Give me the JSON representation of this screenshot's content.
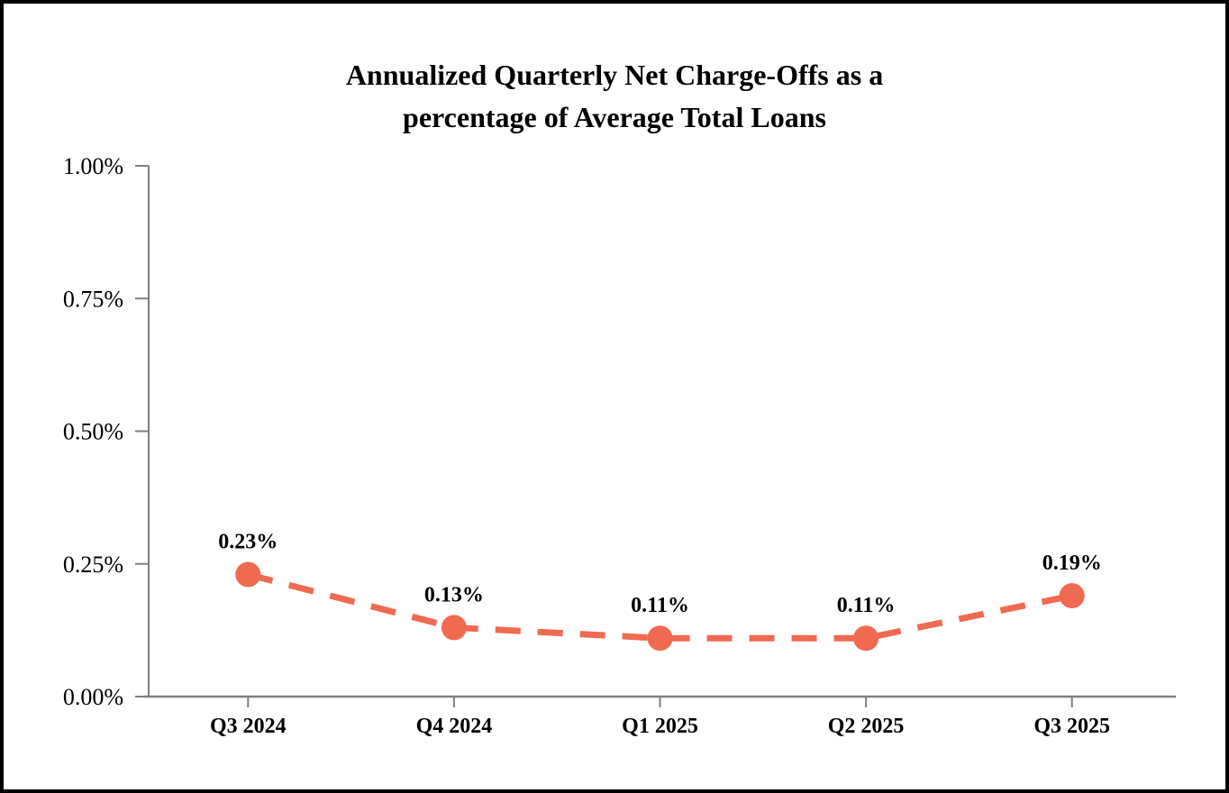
{
  "chart_data": {
    "type": "line",
    "title": "Annualized Quarterly Net Charge-Offs as a percentage of Average Total Loans",
    "title_lines": [
      "Annualized Quarterly Net Charge-Offs as a",
      "percentage of Average Total Loans"
    ],
    "categories": [
      "Q3 2024",
      "Q4 2024",
      "Q1 2025",
      "Q2 2025",
      "Q3 2025"
    ],
    "values": [
      0.23,
      0.13,
      0.11,
      0.11,
      0.19
    ],
    "point_labels": [
      "0.23%",
      "0.13%",
      "0.11%",
      "0.11%",
      "0.19%"
    ],
    "y_ticks": [
      {
        "value": 0.0,
        "label": "0.00%"
      },
      {
        "value": 0.25,
        "label": "0.25%"
      },
      {
        "value": 0.5,
        "label": "0.50%"
      },
      {
        "value": 0.75,
        "label": "0.75%"
      },
      {
        "value": 1.0,
        "label": "1.00%"
      }
    ],
    "ylim": [
      0,
      1
    ],
    "xlabel": "",
    "ylabel": "",
    "legend": "none",
    "grid": false,
    "line_style": "dashed",
    "colors": {
      "line": "#F06A52",
      "marker": "#F06A52",
      "axis": "#808080",
      "text": "#000000",
      "background": "#FFFFFF",
      "border": "#000000"
    }
  }
}
